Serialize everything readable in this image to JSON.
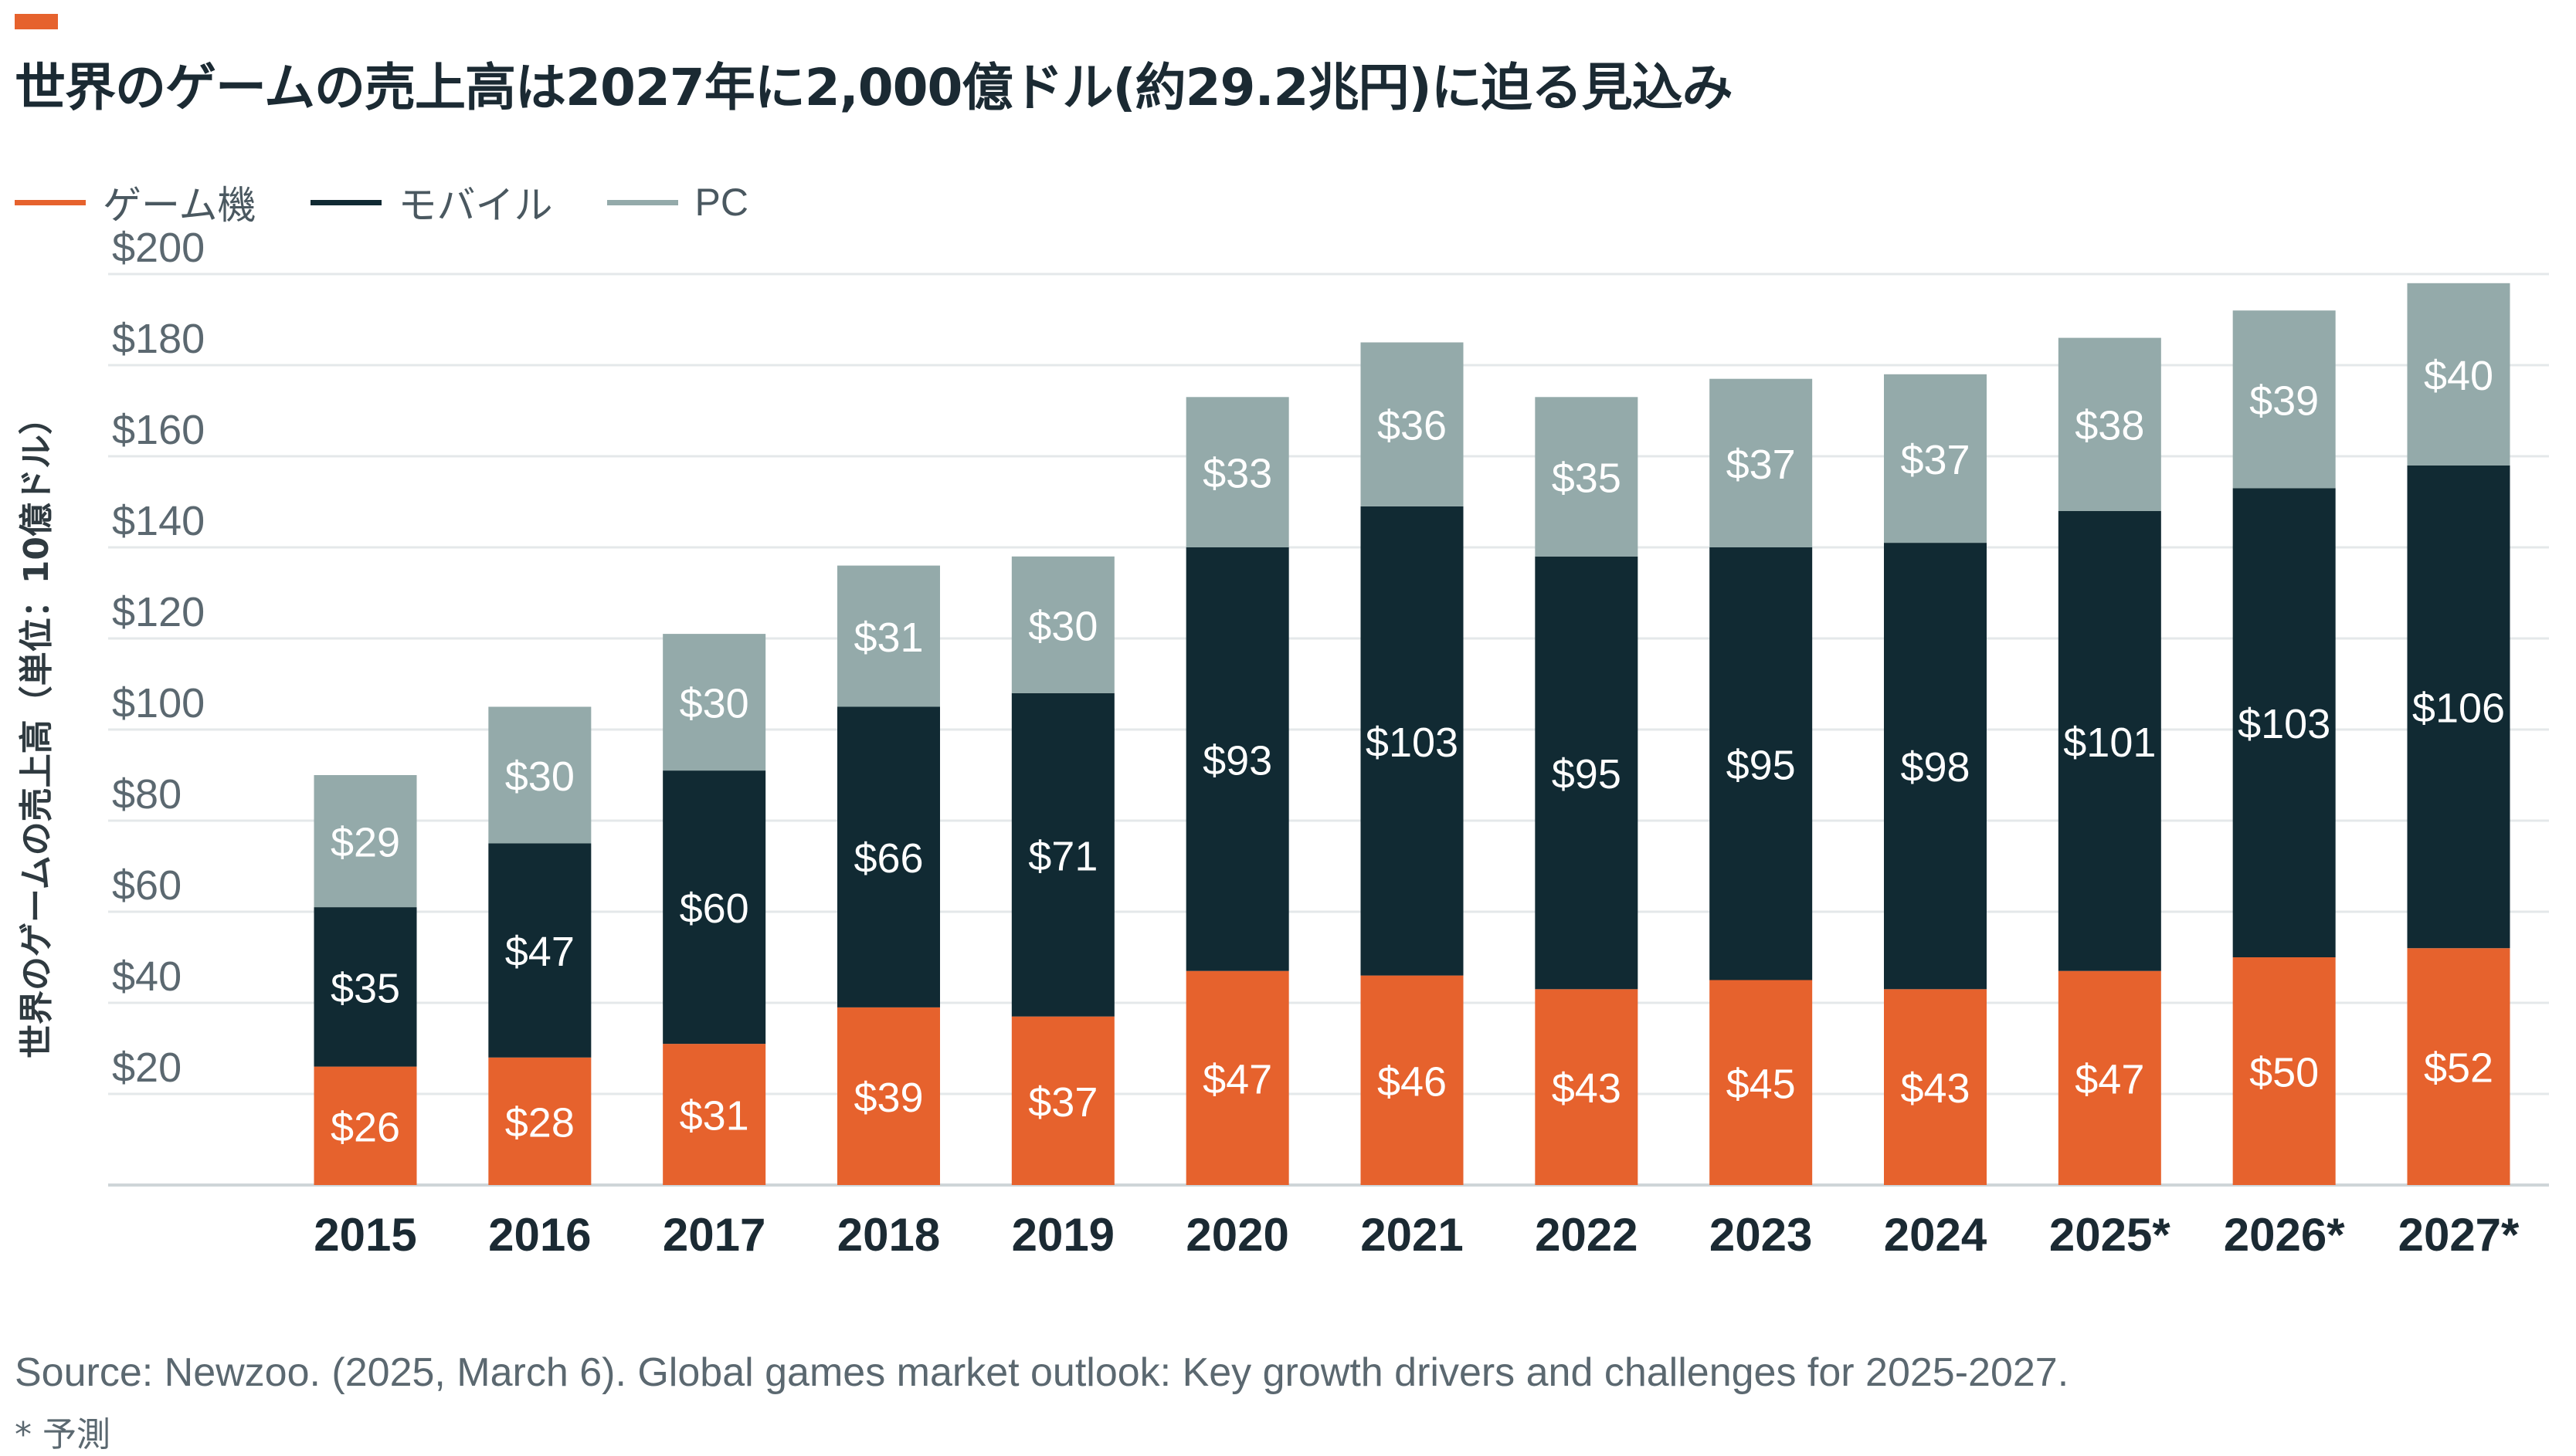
{
  "header": {
    "title": "世界のゲームの売上高は2027年に2,000億ドル(約29.2兆円)に迫る見込み"
  },
  "footer": {
    "source": "Source: Newzoo. (2025, March 6). Global games market outlook: Key growth drivers and challenges for 2025-2027.",
    "note": "* 予測"
  },
  "colors": {
    "accent": "#e6622d",
    "console": "#e6622d",
    "mobile": "#112a33",
    "pc": "#94aaaa",
    "grid": "#e4e8ea",
    "axis_text": "#5b6870",
    "category_text": "#1b2a33"
  },
  "chart_data": {
    "type": "bar",
    "stacked": true,
    "title": "世界のゲームの売上高は2027年に2,000億ドル(約29.2兆円)に迫る見込み",
    "xlabel": "",
    "ylabel": "世界のゲームの売上高（単位：10億ドル）",
    "ylim": [
      0,
      200
    ],
    "yticks": [
      20,
      40,
      60,
      80,
      100,
      120,
      140,
      160,
      180,
      200
    ],
    "ytick_labels": [
      "$20",
      "$40",
      "$60",
      "$80",
      "$100",
      "$120",
      "$140",
      "$160",
      "$180",
      "$200"
    ],
    "grid": true,
    "legend_position": "top-left",
    "categories": [
      "2015",
      "2016",
      "2017",
      "2018",
      "2019",
      "2020",
      "2021",
      "2022",
      "2023",
      "2024",
      "2025*",
      "2026*",
      "2027*"
    ],
    "series": [
      {
        "name": "ゲーム機",
        "color": "#e6622d",
        "values": [
          26,
          28,
          31,
          39,
          37,
          47,
          46,
          43,
          45,
          43,
          47,
          50,
          52
        ],
        "labels": [
          "$26",
          "$28",
          "$31",
          "$39",
          "$37",
          "$47",
          "$46",
          "$43",
          "$45",
          "$43",
          "$47",
          "$50",
          "$52"
        ]
      },
      {
        "name": "モバイル",
        "color": "#112a33",
        "values": [
          35,
          47,
          60,
          66,
          71,
          93,
          103,
          95,
          95,
          98,
          101,
          103,
          106
        ],
        "labels": [
          "$35",
          "$47",
          "$60",
          "$66",
          "$71",
          "$93",
          "$103",
          "$95",
          "$95",
          "$98",
          "$101",
          "$103",
          "$106"
        ]
      },
      {
        "name": "PC",
        "color": "#94aaaa",
        "values": [
          29,
          30,
          30,
          31,
          30,
          33,
          36,
          35,
          37,
          37,
          38,
          39,
          40
        ],
        "labels": [
          "$29",
          "$30",
          "$30",
          "$31",
          "$30",
          "$33",
          "$36",
          "$35",
          "$37",
          "$37",
          "$38",
          "$39",
          "$40"
        ]
      }
    ]
  }
}
